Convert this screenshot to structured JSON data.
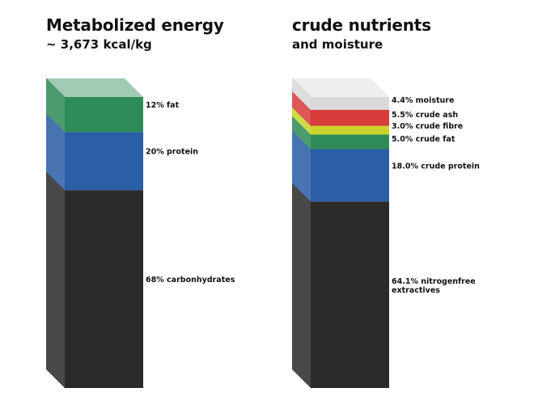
{
  "chart_data": [
    {
      "type": "stacked-3d-column",
      "title": "Metabolized energy",
      "subtitle": "~ 3,673 kcal/kg",
      "unit": "%",
      "segments": [
        {
          "name": "carbonhydrates",
          "value": 68,
          "label": "68% carbonhydrates",
          "color": "#2a2a2a"
        },
        {
          "name": "protein",
          "value": 20,
          "label": "20% protein",
          "color": "#2a5ea6"
        },
        {
          "name": "fat",
          "value": 12,
          "label": "12% fat",
          "color": "#2e8b57"
        }
      ]
    },
    {
      "type": "stacked-3d-column",
      "title": "crude nutrients",
      "subtitle": "and moisture",
      "unit": "%",
      "segments": [
        {
          "name": "nitrogenfree extractives",
          "value": 64.1,
          "label": [
            "64.1% nitrogenfree",
            "extractives"
          ],
          "color": "#2a2a2a"
        },
        {
          "name": "crude protein",
          "value": 18.0,
          "label": "18.0% crude protein",
          "color": "#2a5ea6"
        },
        {
          "name": "crude fat",
          "value": 5.0,
          "label": "5.0% crude fat",
          "color": "#2e8b57"
        },
        {
          "name": "crude fibre",
          "value": 3.0,
          "label": "3.0% crude fibre",
          "color": "#c8d42a"
        },
        {
          "name": "crude ash",
          "value": 5.5,
          "label": "5.5% crude ash",
          "color": "#d93a3a"
        },
        {
          "name": "moisture",
          "value": 4.4,
          "label": "4.4% moisture",
          "color": "#d9d9d9"
        }
      ]
    }
  ]
}
